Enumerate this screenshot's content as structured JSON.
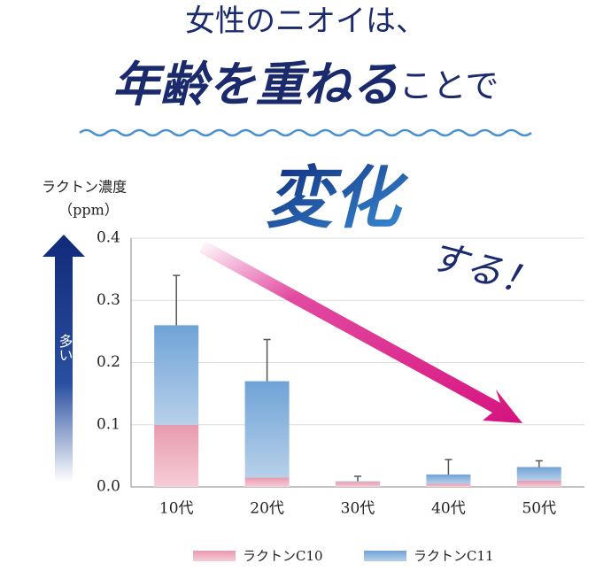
{
  "chart_data": {
    "type": "stacked-bar",
    "headline": "女性のニオイは、",
    "headline_main": "年齢を重ねる",
    "headline_tail": "ことで",
    "headline_big": "変化",
    "headline_end": "する！",
    "y_label": "ラクトン濃度",
    "y_unit": "（ppm）",
    "arrow_label": "多い",
    "categories": [
      "10代",
      "20代",
      "30代",
      "40代",
      "50代"
    ],
    "series": [
      {
        "name": "ラクトンC10",
        "color": "#e89aae",
        "values": [
          0.1,
          0.015,
          0.008,
          0.005,
          0.01
        ]
      },
      {
        "name": "ラクトンC11",
        "color": "#6fa3d6",
        "values": [
          0.16,
          0.155,
          0.001,
          0.015,
          0.022
        ]
      }
    ],
    "errors": [
      0.08,
      0.067,
      0.008,
      0.024,
      0.01
    ],
    "ylim": [
      0,
      0.4
    ],
    "yticks": [
      {
        "value": 0,
        "label": "0.0"
      },
      0.1,
      0.2,
      0.3,
      0.4
    ],
    "grid": true
  }
}
